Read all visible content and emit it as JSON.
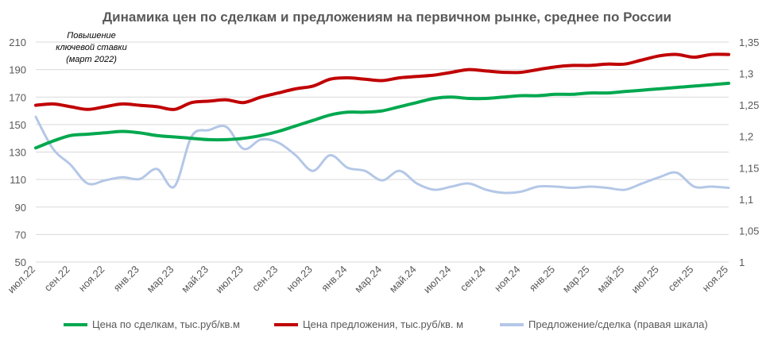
{
  "chart_data": {
    "type": "line",
    "title": "Динамика цен по сделкам и предложениям на первичном рынке, среднее по России",
    "annotation": [
      "Повышение",
      "ключевой ставки",
      "(март 2022)"
    ],
    "x_tick_labels": [
      "июл.22",
      "сен.22",
      "ноя.22",
      "янв.23",
      "мар.23",
      "май.23",
      "июл.23",
      "сен.23",
      "ноя.23",
      "янв.24",
      "мар.24",
      "май.24",
      "июл.24",
      "сен.24",
      "ноя.24",
      "янв.25",
      "мар.25",
      "май.25",
      "июл.25",
      "сен.25",
      "ноя.25"
    ],
    "x_months": [
      "2022-07",
      "2022-08",
      "2022-09",
      "2022-10",
      "2022-11",
      "2022-12",
      "2023-01",
      "2023-02",
      "2023-03",
      "2023-04",
      "2023-05",
      "2023-06",
      "2023-07",
      "2023-08",
      "2023-09",
      "2023-10",
      "2023-11",
      "2023-12",
      "2024-01",
      "2024-02",
      "2024-03",
      "2024-04",
      "2024-05",
      "2024-06",
      "2024-07",
      "2024-08",
      "2024-09",
      "2024-10",
      "2024-11",
      "2024-12",
      "2025-01",
      "2025-02",
      "2025-03",
      "2025-04",
      "2025-05",
      "2025-06",
      "2025-07",
      "2025-08",
      "2025-09",
      "2025-10",
      "2025-11"
    ],
    "y_left": {
      "range": [
        50,
        210
      ],
      "ticks": [
        50,
        70,
        90,
        110,
        130,
        150,
        170,
        190,
        210
      ]
    },
    "y_right": {
      "range": [
        1,
        1.35
      ],
      "ticks": [
        "1",
        "1,05",
        "1,1",
        "1,15",
        "1,2",
        "1,25",
        "1,3",
        "1,35"
      ]
    },
    "grid": "horizontal",
    "legend_position": "bottom",
    "series": [
      {
        "name": "Цена по сделкам, тыс.руб/кв.м",
        "axis": "left",
        "color": "#00a84f",
        "values": [
          133,
          138,
          142,
          143,
          144,
          145,
          144,
          142,
          141,
          140,
          139,
          139,
          140,
          142,
          145,
          149,
          153,
          157,
          159,
          159,
          160,
          163,
          166,
          169,
          170,
          169,
          169,
          170,
          171,
          171,
          172,
          172,
          173,
          173,
          174,
          175,
          176,
          177,
          178,
          179,
          180
        ]
      },
      {
        "name": "Цена предложения, тыс.руб/кв. м",
        "axis": "left",
        "color": "#c00000",
        "values": [
          164,
          165,
          163,
          161,
          163,
          165,
          164,
          163,
          161,
          166,
          167,
          168,
          166,
          170,
          173,
          176,
          178,
          183,
          184,
          183,
          182,
          184,
          185,
          186,
          188,
          190,
          189,
          188,
          188,
          190,
          192,
          193,
          193,
          194,
          194,
          197,
          200,
          201,
          199,
          201,
          201
        ]
      },
      {
        "name": "Предложение/сделка (правая шкала)",
        "axis": "right",
        "color": "#b4c7e7",
        "values": [
          1.231,
          1.18,
          1.155,
          1.125,
          1.13,
          1.135,
          1.132,
          1.148,
          1.12,
          1.2,
          1.21,
          1.215,
          1.18,
          1.195,
          1.19,
          1.17,
          1.145,
          1.17,
          1.15,
          1.145,
          1.13,
          1.145,
          1.125,
          1.115,
          1.12,
          1.125,
          1.115,
          1.11,
          1.112,
          1.12,
          1.12,
          1.118,
          1.12,
          1.118,
          1.115,
          1.125,
          1.135,
          1.142,
          1.12,
          1.12,
          1.118
        ]
      }
    ]
  }
}
